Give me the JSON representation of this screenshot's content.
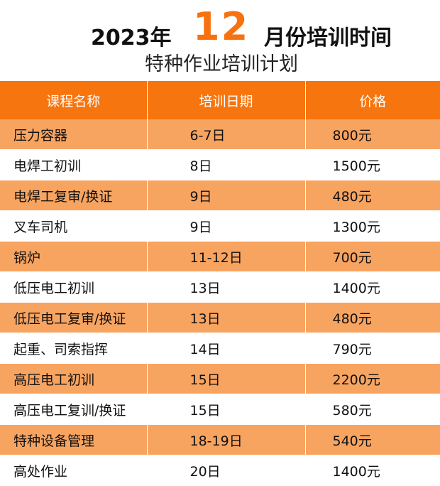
{
  "header": {
    "year": "2023年",
    "month": "12",
    "title_rest": "月份培训时间",
    "subtitle": "特种作业培训计划"
  },
  "columns": [
    "课程名称",
    "培训日期",
    "价格"
  ],
  "rows": [
    {
      "course": "压力容器",
      "date": "6-7日",
      "price": "800元"
    },
    {
      "course": "电焊工初训",
      "date": "8日",
      "price": "1500元"
    },
    {
      "course": "电焊工复审/换证",
      "date": "9日",
      "price": "480元"
    },
    {
      "course": "叉车司机",
      "date": "9日",
      "price": "1300元"
    },
    {
      "course": "锅炉",
      "date": "11-12日",
      "price": "700元"
    },
    {
      "course": "低压电工初训",
      "date": "13日",
      "price": "1400元"
    },
    {
      "course": "低压电工复审/换证",
      "date": "13日",
      "price": "480元"
    },
    {
      "course": "起重、司索指挥",
      "date": "14日",
      "price": "790元"
    },
    {
      "course": "高压电工初训",
      "date": "15日",
      "price": "2200元"
    },
    {
      "course": "高压电工复训/换证",
      "date": "15日",
      "price": "580元"
    },
    {
      "course": "特种设备管理",
      "date": "18-19日",
      "price": "540元"
    },
    {
      "course": "高处作业",
      "date": "20日",
      "price": "1400元"
    }
  ],
  "colors": {
    "accent": "#f7750f",
    "stripe": "#f8a461",
    "title_month": "#f7720f"
  }
}
